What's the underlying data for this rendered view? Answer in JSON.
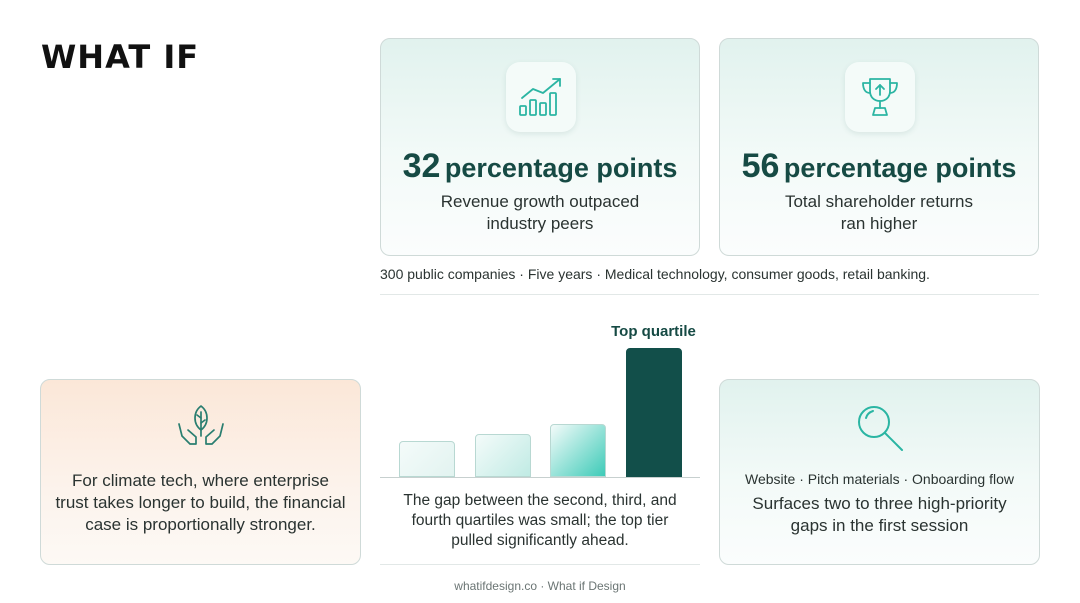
{
  "brand": {
    "logo_text": "WHAT IF"
  },
  "stats": [
    {
      "number": "32",
      "unit": "percentage points",
      "description_line1": "Revenue growth outpaced",
      "description_line2": "industry peers",
      "icon": "growth-chart-icon"
    },
    {
      "number": "56",
      "unit": "percentage points",
      "description_line1": "Total shareholder returns",
      "description_line2": "ran higher",
      "icon": "trophy-icon"
    }
  ],
  "study_caption": "300 public companies · Five years · Medical technology, consumer goods, retail banking.",
  "climate": {
    "icon": "plant-hands-icon",
    "line1": "For climate tech, where enterprise",
    "line2": "trust takes longer to build, the financial",
    "line3": "case is proportionally stronger."
  },
  "chart_data": {
    "type": "bar",
    "categories": [
      "",
      "",
      "",
      ""
    ],
    "values": [
      22,
      26,
      32,
      78
    ],
    "annotations": [
      "Top quartile"
    ],
    "ylim": [
      0,
      80
    ],
    "colors": [
      "#e2f3f0",
      "#c0ebe4",
      "#3ecbb8",
      "#124f4a"
    ],
    "caption_line1": "The gap between the second, third, and",
    "caption_line2": "fourth quartiles was small; the top tier",
    "caption_line3": "pulled significantly ahead."
  },
  "audit": {
    "icon": "magnifier-icon",
    "tags": "Website · Pitch materials · Onboarding flow",
    "line1": "Surfaces two to three high-priority",
    "line2": "gaps in the first session"
  },
  "footer": "whatifdesign.co · What if Design",
  "colors": {
    "accent_dark": "#164a44",
    "accent_teal": "#2bb5a3",
    "mint_bg": "#e1f2ee",
    "peach_bg": "#fbe7d8"
  }
}
